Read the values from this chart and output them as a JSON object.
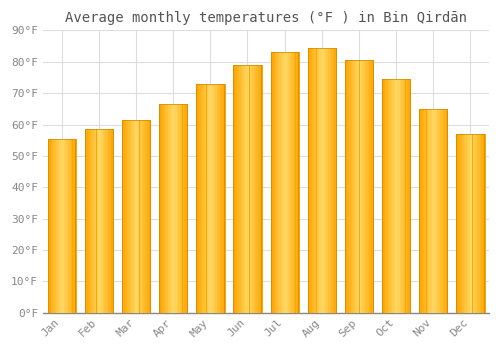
{
  "title": "Average monthly temperatures (°F ) in Bin Qirdān",
  "months": [
    "Jan",
    "Feb",
    "Mar",
    "Apr",
    "May",
    "Jun",
    "Jul",
    "Aug",
    "Sep",
    "Oct",
    "Nov",
    "Dec"
  ],
  "values": [
    55.5,
    58.5,
    61.5,
    66.5,
    73,
    79,
    83,
    84.5,
    80.5,
    74.5,
    65,
    57
  ],
  "bar_color_center": "#FFD966",
  "bar_color_edge": "#FFA500",
  "ylim": [
    0,
    90
  ],
  "yticks": [
    0,
    10,
    20,
    30,
    40,
    50,
    60,
    70,
    80,
    90
  ],
  "ytick_labels": [
    "0°F",
    "10°F",
    "20°F",
    "30°F",
    "40°F",
    "50°F",
    "60°F",
    "70°F",
    "80°F",
    "90°F"
  ],
  "background_color": "#ffffff",
  "plot_bg_color": "#ffffff",
  "grid_color": "#dddddd",
  "title_fontsize": 10,
  "tick_fontsize": 8,
  "bar_width": 0.75
}
